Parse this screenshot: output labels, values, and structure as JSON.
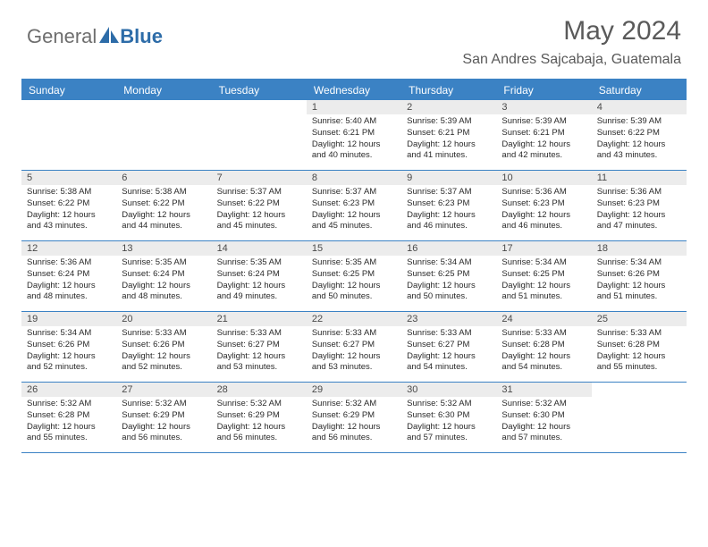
{
  "logo": {
    "part1": "General",
    "part2": "Blue"
  },
  "title": "May 2024",
  "location": "San Andres Sajcabaja, Guatemala",
  "colors": {
    "header_bg": "#3b82c4",
    "daynum_bg": "#ececec",
    "text_gray": "#5a5a5a",
    "border": "#3b82c4"
  },
  "day_headers": [
    "Sunday",
    "Monday",
    "Tuesday",
    "Wednesday",
    "Thursday",
    "Friday",
    "Saturday"
  ],
  "weeks": [
    [
      {
        "num": "",
        "sunrise": "",
        "sunset": "",
        "daylight": ""
      },
      {
        "num": "",
        "sunrise": "",
        "sunset": "",
        "daylight": ""
      },
      {
        "num": "",
        "sunrise": "",
        "sunset": "",
        "daylight": ""
      },
      {
        "num": "1",
        "sunrise": "Sunrise: 5:40 AM",
        "sunset": "Sunset: 6:21 PM",
        "daylight": "Daylight: 12 hours and 40 minutes."
      },
      {
        "num": "2",
        "sunrise": "Sunrise: 5:39 AM",
        "sunset": "Sunset: 6:21 PM",
        "daylight": "Daylight: 12 hours and 41 minutes."
      },
      {
        "num": "3",
        "sunrise": "Sunrise: 5:39 AM",
        "sunset": "Sunset: 6:21 PM",
        "daylight": "Daylight: 12 hours and 42 minutes."
      },
      {
        "num": "4",
        "sunrise": "Sunrise: 5:39 AM",
        "sunset": "Sunset: 6:22 PM",
        "daylight": "Daylight: 12 hours and 43 minutes."
      }
    ],
    [
      {
        "num": "5",
        "sunrise": "Sunrise: 5:38 AM",
        "sunset": "Sunset: 6:22 PM",
        "daylight": "Daylight: 12 hours and 43 minutes."
      },
      {
        "num": "6",
        "sunrise": "Sunrise: 5:38 AM",
        "sunset": "Sunset: 6:22 PM",
        "daylight": "Daylight: 12 hours and 44 minutes."
      },
      {
        "num": "7",
        "sunrise": "Sunrise: 5:37 AM",
        "sunset": "Sunset: 6:22 PM",
        "daylight": "Daylight: 12 hours and 45 minutes."
      },
      {
        "num": "8",
        "sunrise": "Sunrise: 5:37 AM",
        "sunset": "Sunset: 6:23 PM",
        "daylight": "Daylight: 12 hours and 45 minutes."
      },
      {
        "num": "9",
        "sunrise": "Sunrise: 5:37 AM",
        "sunset": "Sunset: 6:23 PM",
        "daylight": "Daylight: 12 hours and 46 minutes."
      },
      {
        "num": "10",
        "sunrise": "Sunrise: 5:36 AM",
        "sunset": "Sunset: 6:23 PM",
        "daylight": "Daylight: 12 hours and 46 minutes."
      },
      {
        "num": "11",
        "sunrise": "Sunrise: 5:36 AM",
        "sunset": "Sunset: 6:23 PM",
        "daylight": "Daylight: 12 hours and 47 minutes."
      }
    ],
    [
      {
        "num": "12",
        "sunrise": "Sunrise: 5:36 AM",
        "sunset": "Sunset: 6:24 PM",
        "daylight": "Daylight: 12 hours and 48 minutes."
      },
      {
        "num": "13",
        "sunrise": "Sunrise: 5:35 AM",
        "sunset": "Sunset: 6:24 PM",
        "daylight": "Daylight: 12 hours and 48 minutes."
      },
      {
        "num": "14",
        "sunrise": "Sunrise: 5:35 AM",
        "sunset": "Sunset: 6:24 PM",
        "daylight": "Daylight: 12 hours and 49 minutes."
      },
      {
        "num": "15",
        "sunrise": "Sunrise: 5:35 AM",
        "sunset": "Sunset: 6:25 PM",
        "daylight": "Daylight: 12 hours and 50 minutes."
      },
      {
        "num": "16",
        "sunrise": "Sunrise: 5:34 AM",
        "sunset": "Sunset: 6:25 PM",
        "daylight": "Daylight: 12 hours and 50 minutes."
      },
      {
        "num": "17",
        "sunrise": "Sunrise: 5:34 AM",
        "sunset": "Sunset: 6:25 PM",
        "daylight": "Daylight: 12 hours and 51 minutes."
      },
      {
        "num": "18",
        "sunrise": "Sunrise: 5:34 AM",
        "sunset": "Sunset: 6:26 PM",
        "daylight": "Daylight: 12 hours and 51 minutes."
      }
    ],
    [
      {
        "num": "19",
        "sunrise": "Sunrise: 5:34 AM",
        "sunset": "Sunset: 6:26 PM",
        "daylight": "Daylight: 12 hours and 52 minutes."
      },
      {
        "num": "20",
        "sunrise": "Sunrise: 5:33 AM",
        "sunset": "Sunset: 6:26 PM",
        "daylight": "Daylight: 12 hours and 52 minutes."
      },
      {
        "num": "21",
        "sunrise": "Sunrise: 5:33 AM",
        "sunset": "Sunset: 6:27 PM",
        "daylight": "Daylight: 12 hours and 53 minutes."
      },
      {
        "num": "22",
        "sunrise": "Sunrise: 5:33 AM",
        "sunset": "Sunset: 6:27 PM",
        "daylight": "Daylight: 12 hours and 53 minutes."
      },
      {
        "num": "23",
        "sunrise": "Sunrise: 5:33 AM",
        "sunset": "Sunset: 6:27 PM",
        "daylight": "Daylight: 12 hours and 54 minutes."
      },
      {
        "num": "24",
        "sunrise": "Sunrise: 5:33 AM",
        "sunset": "Sunset: 6:28 PM",
        "daylight": "Daylight: 12 hours and 54 minutes."
      },
      {
        "num": "25",
        "sunrise": "Sunrise: 5:33 AM",
        "sunset": "Sunset: 6:28 PM",
        "daylight": "Daylight: 12 hours and 55 minutes."
      }
    ],
    [
      {
        "num": "26",
        "sunrise": "Sunrise: 5:32 AM",
        "sunset": "Sunset: 6:28 PM",
        "daylight": "Daylight: 12 hours and 55 minutes."
      },
      {
        "num": "27",
        "sunrise": "Sunrise: 5:32 AM",
        "sunset": "Sunset: 6:29 PM",
        "daylight": "Daylight: 12 hours and 56 minutes."
      },
      {
        "num": "28",
        "sunrise": "Sunrise: 5:32 AM",
        "sunset": "Sunset: 6:29 PM",
        "daylight": "Daylight: 12 hours and 56 minutes."
      },
      {
        "num": "29",
        "sunrise": "Sunrise: 5:32 AM",
        "sunset": "Sunset: 6:29 PM",
        "daylight": "Daylight: 12 hours and 56 minutes."
      },
      {
        "num": "30",
        "sunrise": "Sunrise: 5:32 AM",
        "sunset": "Sunset: 6:30 PM",
        "daylight": "Daylight: 12 hours and 57 minutes."
      },
      {
        "num": "31",
        "sunrise": "Sunrise: 5:32 AM",
        "sunset": "Sunset: 6:30 PM",
        "daylight": "Daylight: 12 hours and 57 minutes."
      },
      {
        "num": "",
        "sunrise": "",
        "sunset": "",
        "daylight": ""
      }
    ]
  ]
}
